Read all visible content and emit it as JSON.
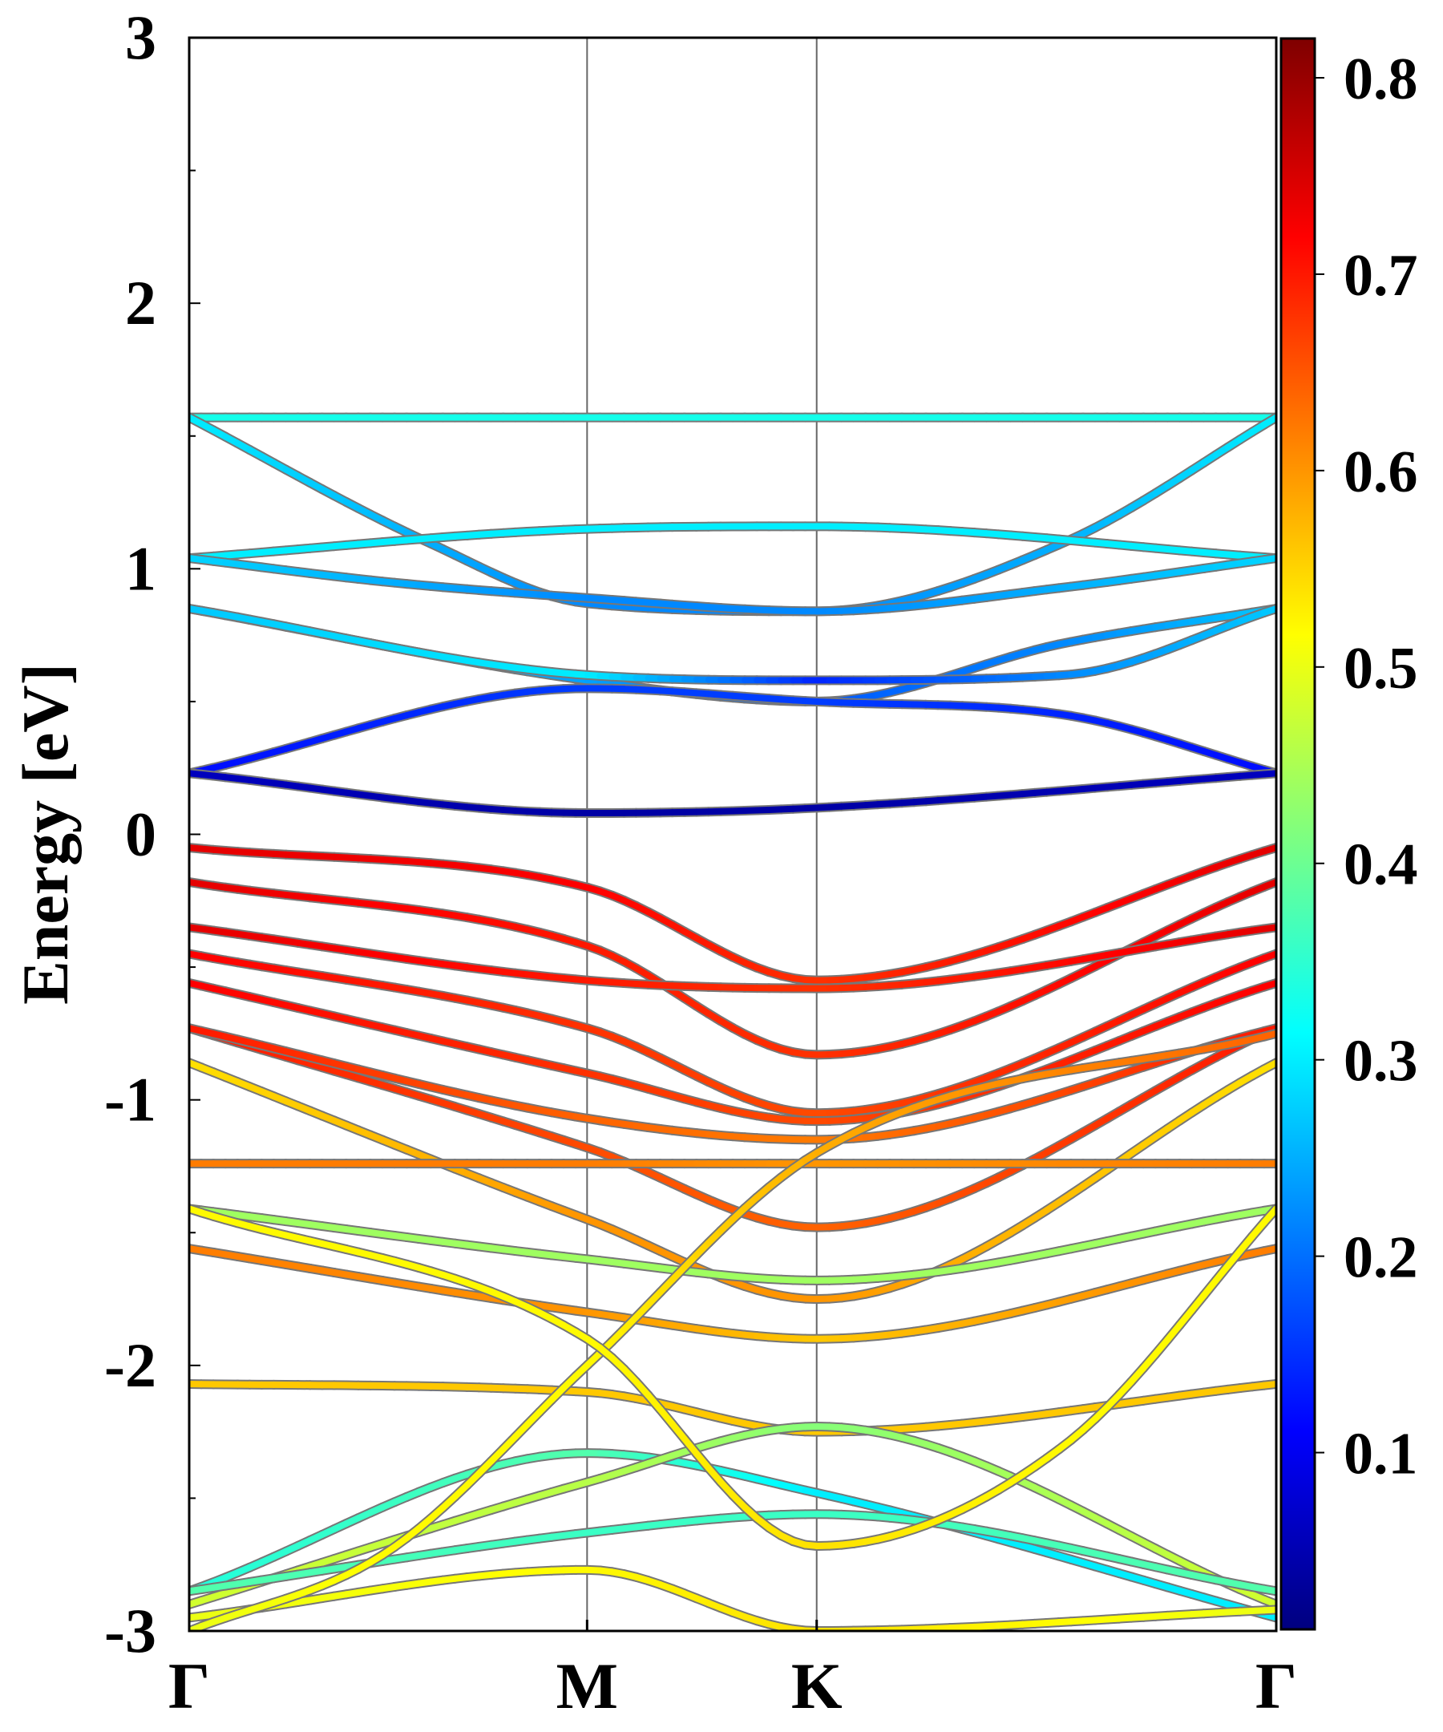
{
  "chart_data": {
    "type": "line",
    "title": "",
    "xlabel": "",
    "ylabel": "Energy [eV]",
    "ylim": [
      -3,
      3
    ],
    "yticks": [
      "3",
      "2",
      "1",
      "0",
      "-1",
      "-2",
      "-3"
    ],
    "x_path_labels": [
      "Γ",
      "M",
      "K",
      "Γ"
    ],
    "x_path_positions": [
      0,
      1,
      1.577,
      2.732
    ],
    "grid": false,
    "colorbar": {
      "colormap": "jet",
      "range": [
        0.01,
        0.82
      ],
      "ticks": [
        "0.1",
        "0.2",
        "0.3",
        "0.4",
        "0.5",
        "0.6",
        "0.7",
        "0.8"
      ],
      "stops": [
        "#00007f",
        "#0000ff",
        "#007fff",
        "#00ffff",
        "#7fff7f",
        "#ffff00",
        "#ff7f00",
        "#ff0000",
        "#7f0000"
      ]
    },
    "series": [
      {
        "x": [
          0,
          1,
          1.577,
          2.732
        ],
        "values": [
          1.57,
          1.57,
          1.57,
          1.57
        ],
        "weights": [
          0.33,
          0.33,
          0.33,
          0.33
        ]
      },
      {
        "x": [
          0,
          0.6,
          1,
          1.577,
          2.2,
          2.732
        ],
        "values": [
          1.57,
          1.1,
          0.87,
          0.84,
          1.1,
          1.57
        ],
        "weights": [
          0.3,
          0.25,
          0.22,
          0.22,
          0.25,
          0.3
        ]
      },
      {
        "x": [
          0,
          1,
          1.577,
          2.732
        ],
        "values": [
          1.04,
          1.15,
          1.16,
          1.04
        ],
        "weights": [
          0.3,
          0.3,
          0.3,
          0.3
        ]
      },
      {
        "x": [
          0,
          0.5,
          1,
          1.577,
          2.2,
          2.732
        ],
        "values": [
          1.04,
          0.95,
          0.89,
          0.84,
          0.93,
          1.04
        ],
        "weights": [
          0.28,
          0.25,
          0.22,
          0.22,
          0.25,
          0.28
        ]
      },
      {
        "x": [
          0,
          1,
          1.577,
          2.2,
          2.732
        ],
        "values": [
          0.85,
          0.58,
          0.5,
          0.72,
          0.85
        ],
        "weights": [
          0.27,
          0.24,
          0.18,
          0.22,
          0.27
        ]
      },
      {
        "x": [
          0,
          1,
          1.577,
          2.2,
          2.732
        ],
        "values": [
          0.85,
          0.6,
          0.58,
          0.6,
          0.85
        ],
        "weights": [
          0.27,
          0.3,
          0.14,
          0.22,
          0.27
        ]
      },
      {
        "x": [
          0,
          1,
          1.577,
          2.2,
          2.732
        ],
        "values": [
          0.23,
          0.55,
          0.5,
          0.45,
          0.23
        ],
        "weights": [
          0.12,
          0.16,
          0.16,
          0.14,
          0.12
        ]
      },
      {
        "x": [
          0,
          1,
          1.577,
          2.732
        ],
        "values": [
          0.23,
          0.08,
          0.1,
          0.23
        ],
        "weights": [
          0.06,
          0.04,
          0.04,
          0.06
        ]
      },
      {
        "x": [
          0,
          1,
          1.577,
          2.732
        ],
        "values": [
          -0.05,
          -0.2,
          -0.55,
          -0.05
        ],
        "weights": [
          0.74,
          0.72,
          0.68,
          0.74
        ]
      },
      {
        "x": [
          0,
          1,
          1.577,
          2.732
        ],
        "values": [
          -0.18,
          -0.42,
          -0.83,
          -0.18
        ],
        "weights": [
          0.74,
          0.7,
          0.68,
          0.74
        ]
      },
      {
        "x": [
          0,
          1,
          1.577,
          2.732
        ],
        "values": [
          -0.35,
          -0.55,
          -0.58,
          -0.35
        ],
        "weights": [
          0.74,
          0.7,
          0.68,
          0.74
        ]
      },
      {
        "x": [
          0,
          1,
          1.577,
          2.732
        ],
        "values": [
          -0.45,
          -0.73,
          -1.05,
          -0.45
        ],
        "weights": [
          0.72,
          0.68,
          0.66,
          0.72
        ]
      },
      {
        "x": [
          0,
          1,
          1.577,
          2.732
        ],
        "values": [
          -0.56,
          -0.9,
          -1.08,
          -0.56
        ],
        "weights": [
          0.72,
          0.68,
          0.66,
          0.72
        ]
      },
      {
        "x": [
          0,
          1,
          1.577,
          2.732
        ],
        "values": [
          -0.73,
          -1.18,
          -1.48,
          -0.73
        ],
        "weights": [
          0.7,
          0.66,
          0.64,
          0.7
        ]
      },
      {
        "x": [
          0,
          1,
          1.577,
          2.732
        ],
        "values": [
          -0.73,
          -1.07,
          -1.15,
          -0.73
        ],
        "weights": [
          0.7,
          0.64,
          0.62,
          0.7
        ]
      },
      {
        "x": [
          0,
          1,
          1.577,
          2.732
        ],
        "values": [
          -0.86,
          -1.45,
          -1.75,
          -0.86
        ],
        "weights": [
          0.54,
          0.6,
          0.6,
          0.54
        ]
      },
      {
        "x": [
          0,
          1,
          1.577,
          2.732
        ],
        "values": [
          -1.24,
          -1.24,
          -1.24,
          -1.24
        ],
        "weights": [
          0.62,
          0.62,
          0.6,
          0.62
        ]
      },
      {
        "x": [
          0,
          1,
          1.577,
          2.732
        ],
        "values": [
          -1.41,
          -1.6,
          -1.68,
          -1.41
        ],
        "weights": [
          0.44,
          0.44,
          0.44,
          0.44
        ]
      },
      {
        "x": [
          0,
          1,
          1.577,
          2.732
        ],
        "values": [
          -1.56,
          -1.8,
          -1.9,
          -1.56
        ],
        "weights": [
          0.62,
          0.6,
          0.56,
          0.62
        ]
      },
      {
        "x": [
          0,
          1,
          1.577,
          2.732
        ],
        "values": [
          -2.07,
          -2.1,
          -2.25,
          -2.07
        ],
        "weights": [
          0.56,
          0.56,
          0.56,
          0.56
        ]
      },
      {
        "x": [
          0,
          1,
          1.577,
          2.732
        ],
        "values": [
          -2.85,
          -2.33,
          -2.48,
          -2.95
        ],
        "weights": [
          0.34,
          0.38,
          0.3,
          0.3
        ]
      },
      {
        "x": [
          0,
          1,
          1.577,
          2.732
        ],
        "values": [
          -2.9,
          -2.44,
          -2.23,
          -2.9
        ],
        "weights": [
          0.48,
          0.46,
          0.42,
          0.48
        ]
      },
      {
        "x": [
          0,
          1,
          1.577,
          2.732
        ],
        "values": [
          -2.85,
          -2.63,
          -2.56,
          -2.85
        ],
        "weights": [
          0.38,
          0.36,
          0.36,
          0.38
        ]
      },
      {
        "x": [
          0,
          1,
          1.577,
          2.732
        ],
        "values": [
          -2.95,
          -2.77,
          -3.0,
          -2.92
        ],
        "weights": [
          0.5,
          0.52,
          0.54,
          0.5
        ]
      },
      {
        "x": [
          0,
          0.5,
          1,
          1.577,
          2.732
        ],
        "values": [
          -3.0,
          -2.7,
          -2.0,
          -1.2,
          -0.75
        ],
        "weights": [
          0.5,
          0.52,
          0.52,
          0.58,
          0.64
        ]
      },
      {
        "x": [
          0,
          1,
          1.577,
          2.2,
          2.732
        ],
        "values": [
          -1.41,
          -1.9,
          -2.68,
          -2.3,
          -1.41
        ],
        "weights": [
          0.52,
          0.52,
          0.54,
          0.52,
          0.52
        ]
      }
    ]
  }
}
